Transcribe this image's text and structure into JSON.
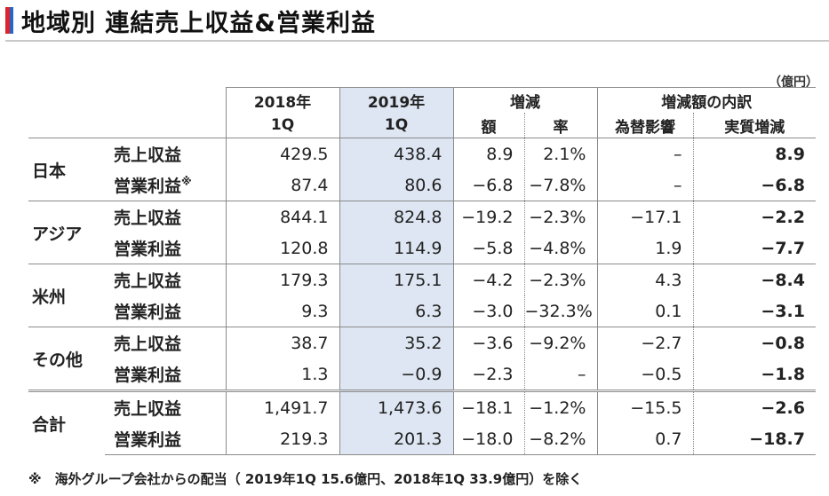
{
  "title": "地域別 連結売上収益&営業利益",
  "unit": "（億円）",
  "colors": {
    "accent_red": "#d9262e",
    "accent_blue": "#2a64c4",
    "highlight_col": "#dde6f2"
  },
  "headers": {
    "y2018_line1": "2018年",
    "y2018_line2": "1Q",
    "y2019_line1": "2019年",
    "y2019_line2": "1Q",
    "change": "増減",
    "change_amount": "額",
    "change_rate": "率",
    "breakdown": "増減額の内訳",
    "fx": "為替影響",
    "real": "実質増減"
  },
  "regions": [
    {
      "name": "日本",
      "rows": [
        {
          "item": "売上収益",
          "note": "",
          "y2018": "429.5",
          "y2019": "438.4",
          "amount": "8.9",
          "rate": "2.1%",
          "fx": "–",
          "real": "8.9"
        },
        {
          "item": "営業利益",
          "note": "※",
          "y2018": "87.4",
          "y2019": "80.6",
          "amount": "−6.8",
          "rate": "−7.8%",
          "fx": "–",
          "real": "−6.8"
        }
      ]
    },
    {
      "name": "アジア",
      "rows": [
        {
          "item": "売上収益",
          "note": "",
          "y2018": "844.1",
          "y2019": "824.8",
          "amount": "−19.2",
          "rate": "−2.3%",
          "fx": "−17.1",
          "real": "−2.2"
        },
        {
          "item": "営業利益",
          "note": "",
          "y2018": "120.8",
          "y2019": "114.9",
          "amount": "−5.8",
          "rate": "−4.8%",
          "fx": "1.9",
          "real": "−7.7"
        }
      ]
    },
    {
      "name": "米州",
      "rows": [
        {
          "item": "売上収益",
          "note": "",
          "y2018": "179.3",
          "y2019": "175.1",
          "amount": "−4.2",
          "rate": "−2.3%",
          "fx": "4.3",
          "real": "−8.4"
        },
        {
          "item": "営業利益",
          "note": "",
          "y2018": "9.3",
          "y2019": "6.3",
          "amount": "−3.0",
          "rate": "−32.3%",
          "fx": "0.1",
          "real": "−3.1"
        }
      ]
    },
    {
      "name": "その他",
      "rows": [
        {
          "item": "売上収益",
          "note": "",
          "y2018": "38.7",
          "y2019": "35.2",
          "amount": "−3.6",
          "rate": "−9.2%",
          "fx": "−2.7",
          "real": "−0.8"
        },
        {
          "item": "営業利益",
          "note": "",
          "y2018": "1.3",
          "y2019": "−0.9",
          "amount": "−2.3",
          "rate": "–",
          "fx": "−0.5",
          "real": "−1.8"
        }
      ]
    },
    {
      "name": "合計",
      "rows": [
        {
          "item": "売上収益",
          "note": "",
          "y2018": "1,491.7",
          "y2019": "1,473.6",
          "amount": "−18.1",
          "rate": "−1.2%",
          "fx": "−15.5",
          "real": "−2.6"
        },
        {
          "item": "営業利益",
          "note": "",
          "y2018": "219.3",
          "y2019": "201.3",
          "amount": "−18.0",
          "rate": "−8.2%",
          "fx": "0.7",
          "real": "−18.7"
        }
      ]
    }
  ],
  "footnote": "※　海外グループ会社からの配当（ 2019年1Q 15.6億円、2018年1Q 33.9億円）を除く"
}
